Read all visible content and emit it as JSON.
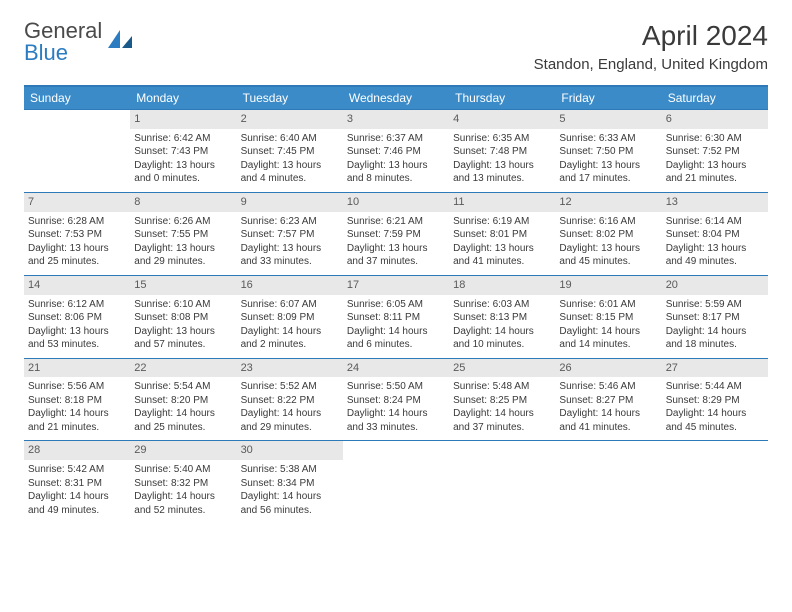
{
  "logo": {
    "text1": "General",
    "text2": "Blue"
  },
  "title": "April 2024",
  "location": "Standon, England, United Kingdom",
  "dow": [
    "Sunday",
    "Monday",
    "Tuesday",
    "Wednesday",
    "Thursday",
    "Friday",
    "Saturday"
  ],
  "colors": {
    "header_bg": "#3b8bc9",
    "header_text": "#ffffff",
    "border": "#2e7ab8",
    "daynum_bg": "#e8e8e8",
    "text": "#3a3a3a",
    "logo_gray": "#4a4a4a",
    "logo_blue": "#2b7cc0"
  },
  "weeks": [
    [
      {
        "n": "",
        "sr": "",
        "ss": "",
        "dl": ""
      },
      {
        "n": "1",
        "sr": "Sunrise: 6:42 AM",
        "ss": "Sunset: 7:43 PM",
        "dl": "Daylight: 13 hours and 0 minutes."
      },
      {
        "n": "2",
        "sr": "Sunrise: 6:40 AM",
        "ss": "Sunset: 7:45 PM",
        "dl": "Daylight: 13 hours and 4 minutes."
      },
      {
        "n": "3",
        "sr": "Sunrise: 6:37 AM",
        "ss": "Sunset: 7:46 PM",
        "dl": "Daylight: 13 hours and 8 minutes."
      },
      {
        "n": "4",
        "sr": "Sunrise: 6:35 AM",
        "ss": "Sunset: 7:48 PM",
        "dl": "Daylight: 13 hours and 13 minutes."
      },
      {
        "n": "5",
        "sr": "Sunrise: 6:33 AM",
        "ss": "Sunset: 7:50 PM",
        "dl": "Daylight: 13 hours and 17 minutes."
      },
      {
        "n": "6",
        "sr": "Sunrise: 6:30 AM",
        "ss": "Sunset: 7:52 PM",
        "dl": "Daylight: 13 hours and 21 minutes."
      }
    ],
    [
      {
        "n": "7",
        "sr": "Sunrise: 6:28 AM",
        "ss": "Sunset: 7:53 PM",
        "dl": "Daylight: 13 hours and 25 minutes."
      },
      {
        "n": "8",
        "sr": "Sunrise: 6:26 AM",
        "ss": "Sunset: 7:55 PM",
        "dl": "Daylight: 13 hours and 29 minutes."
      },
      {
        "n": "9",
        "sr": "Sunrise: 6:23 AM",
        "ss": "Sunset: 7:57 PM",
        "dl": "Daylight: 13 hours and 33 minutes."
      },
      {
        "n": "10",
        "sr": "Sunrise: 6:21 AM",
        "ss": "Sunset: 7:59 PM",
        "dl": "Daylight: 13 hours and 37 minutes."
      },
      {
        "n": "11",
        "sr": "Sunrise: 6:19 AM",
        "ss": "Sunset: 8:01 PM",
        "dl": "Daylight: 13 hours and 41 minutes."
      },
      {
        "n": "12",
        "sr": "Sunrise: 6:16 AM",
        "ss": "Sunset: 8:02 PM",
        "dl": "Daylight: 13 hours and 45 minutes."
      },
      {
        "n": "13",
        "sr": "Sunrise: 6:14 AM",
        "ss": "Sunset: 8:04 PM",
        "dl": "Daylight: 13 hours and 49 minutes."
      }
    ],
    [
      {
        "n": "14",
        "sr": "Sunrise: 6:12 AM",
        "ss": "Sunset: 8:06 PM",
        "dl": "Daylight: 13 hours and 53 minutes."
      },
      {
        "n": "15",
        "sr": "Sunrise: 6:10 AM",
        "ss": "Sunset: 8:08 PM",
        "dl": "Daylight: 13 hours and 57 minutes."
      },
      {
        "n": "16",
        "sr": "Sunrise: 6:07 AM",
        "ss": "Sunset: 8:09 PM",
        "dl": "Daylight: 14 hours and 2 minutes."
      },
      {
        "n": "17",
        "sr": "Sunrise: 6:05 AM",
        "ss": "Sunset: 8:11 PM",
        "dl": "Daylight: 14 hours and 6 minutes."
      },
      {
        "n": "18",
        "sr": "Sunrise: 6:03 AM",
        "ss": "Sunset: 8:13 PM",
        "dl": "Daylight: 14 hours and 10 minutes."
      },
      {
        "n": "19",
        "sr": "Sunrise: 6:01 AM",
        "ss": "Sunset: 8:15 PM",
        "dl": "Daylight: 14 hours and 14 minutes."
      },
      {
        "n": "20",
        "sr": "Sunrise: 5:59 AM",
        "ss": "Sunset: 8:17 PM",
        "dl": "Daylight: 14 hours and 18 minutes."
      }
    ],
    [
      {
        "n": "21",
        "sr": "Sunrise: 5:56 AM",
        "ss": "Sunset: 8:18 PM",
        "dl": "Daylight: 14 hours and 21 minutes."
      },
      {
        "n": "22",
        "sr": "Sunrise: 5:54 AM",
        "ss": "Sunset: 8:20 PM",
        "dl": "Daylight: 14 hours and 25 minutes."
      },
      {
        "n": "23",
        "sr": "Sunrise: 5:52 AM",
        "ss": "Sunset: 8:22 PM",
        "dl": "Daylight: 14 hours and 29 minutes."
      },
      {
        "n": "24",
        "sr": "Sunrise: 5:50 AM",
        "ss": "Sunset: 8:24 PM",
        "dl": "Daylight: 14 hours and 33 minutes."
      },
      {
        "n": "25",
        "sr": "Sunrise: 5:48 AM",
        "ss": "Sunset: 8:25 PM",
        "dl": "Daylight: 14 hours and 37 minutes."
      },
      {
        "n": "26",
        "sr": "Sunrise: 5:46 AM",
        "ss": "Sunset: 8:27 PM",
        "dl": "Daylight: 14 hours and 41 minutes."
      },
      {
        "n": "27",
        "sr": "Sunrise: 5:44 AM",
        "ss": "Sunset: 8:29 PM",
        "dl": "Daylight: 14 hours and 45 minutes."
      }
    ],
    [
      {
        "n": "28",
        "sr": "Sunrise: 5:42 AM",
        "ss": "Sunset: 8:31 PM",
        "dl": "Daylight: 14 hours and 49 minutes."
      },
      {
        "n": "29",
        "sr": "Sunrise: 5:40 AM",
        "ss": "Sunset: 8:32 PM",
        "dl": "Daylight: 14 hours and 52 minutes."
      },
      {
        "n": "30",
        "sr": "Sunrise: 5:38 AM",
        "ss": "Sunset: 8:34 PM",
        "dl": "Daylight: 14 hours and 56 minutes."
      },
      {
        "n": "",
        "sr": "",
        "ss": "",
        "dl": ""
      },
      {
        "n": "",
        "sr": "",
        "ss": "",
        "dl": ""
      },
      {
        "n": "",
        "sr": "",
        "ss": "",
        "dl": ""
      },
      {
        "n": "",
        "sr": "",
        "ss": "",
        "dl": ""
      }
    ]
  ]
}
